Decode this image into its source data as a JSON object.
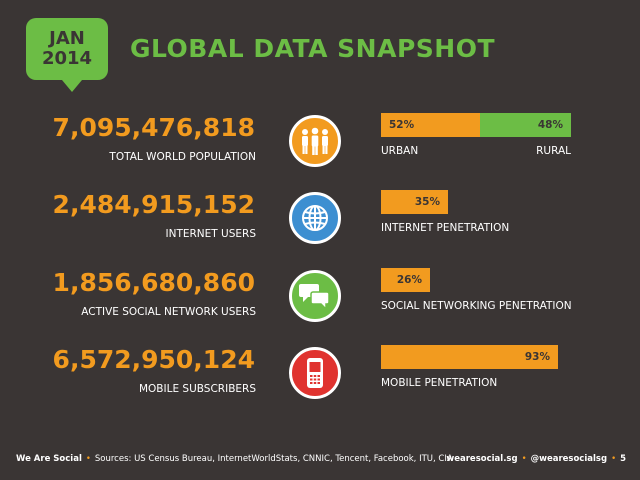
{
  "header": {
    "month": "JAN",
    "year": "2014",
    "title": "GLOBAL DATA SNAPSHOT"
  },
  "colors": {
    "background": "#3a3534",
    "orange": "#f29b1f",
    "green": "#6cbd45",
    "blue": "#3d8fd1",
    "red": "#e0332f"
  },
  "rows": [
    {
      "value": "7,095,476,818",
      "label": "TOTAL WORLD POPULATION",
      "icon": "people-icon",
      "bar_left_pct": "52%",
      "bar_right_pct": "48%",
      "bar_left_value": 0.52,
      "bar_right_value": 0.48,
      "bar_left_label": "URBAN",
      "bar_right_label": "RURAL"
    },
    {
      "value": "2,484,915,152",
      "label": "INTERNET USERS",
      "icon": "globe-icon",
      "bar_pct": "35%",
      "bar_value": 0.35,
      "bar_label": "INTERNET PENETRATION"
    },
    {
      "value": "1,856,680,860",
      "label": "ACTIVE SOCIAL NETWORK USERS",
      "icon": "speech-bubbles-icon",
      "bar_pct": "26%",
      "bar_value": 0.26,
      "bar_label": "SOCIAL NETWORKING PENETRATION"
    },
    {
      "value": "6,572,950,124",
      "label": "MOBILE SUBSCRIBERS",
      "icon": "mobile-phone-icon",
      "bar_pct": "93%",
      "bar_value": 0.93,
      "bar_label": "MOBILE PENETRATION"
    }
  ],
  "footer": {
    "brand": "We Are Social",
    "sources": "Sources: US Census Bureau, InternetWorldStats, CNNIC, Tencent, Facebook, ITU, CIA",
    "site": "wearesocial.sg",
    "handle": "@wearesocialsg",
    "page": "5"
  }
}
